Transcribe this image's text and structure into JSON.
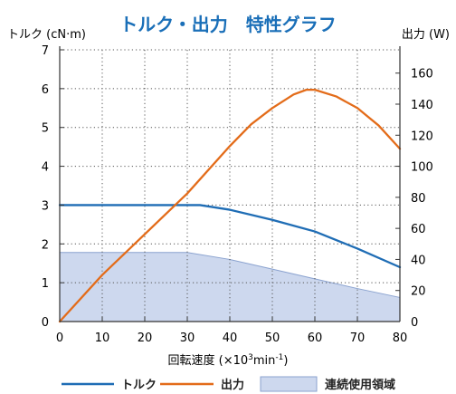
{
  "chart_data": {
    "type": "line",
    "title": "トルク・出力　特性グラフ",
    "title_color": "#1a6fb8",
    "y_left_label": "トルク (cN·m)",
    "y_right_label": "出力 (W)",
    "xlabel_parts": [
      "回転速度 (×10",
      "3",
      "min",
      "-1",
      ")"
    ],
    "xlim": [
      0,
      80
    ],
    "ylim_left": [
      0,
      7
    ],
    "ylim_right": [
      0,
      175
    ],
    "x_ticks": [
      0,
      10,
      20,
      30,
      40,
      50,
      60,
      70,
      80
    ],
    "y_left_ticks": [
      0,
      1,
      2,
      3,
      4,
      5,
      6,
      7
    ],
    "y_right_ticks": [
      0,
      20,
      40,
      60,
      80,
      100,
      120,
      140,
      160
    ],
    "grid": "dotted",
    "legend_position": "bottom",
    "series": [
      {
        "name": "トルク",
        "type": "line",
        "axis": "left",
        "color": "#1f6db5",
        "x": [
          0,
          10,
          20,
          30,
          33,
          40,
          50,
          60,
          70,
          80
        ],
        "y": [
          3.0,
          3.0,
          3.0,
          3.0,
          3.0,
          2.88,
          2.62,
          2.32,
          1.88,
          1.4
        ]
      },
      {
        "name": "出力",
        "type": "line",
        "axis": "left",
        "color": "#e36c1a",
        "x": [
          0,
          10,
          20,
          30,
          40,
          45,
          50,
          55,
          58,
          60,
          65,
          70,
          75,
          80
        ],
        "y": [
          0,
          1.2,
          2.25,
          3.3,
          4.52,
          5.08,
          5.5,
          5.85,
          5.97,
          5.97,
          5.8,
          5.5,
          5.05,
          4.45
        ]
      },
      {
        "name": "連続使用領域",
        "type": "area",
        "axis": "left",
        "color": "#cdd8ee",
        "edge_color": "#8aa2cf",
        "x": [
          0,
          30,
          40,
          50,
          60,
          70,
          80
        ],
        "y": [
          1.78,
          1.78,
          1.6,
          1.35,
          1.1,
          0.85,
          0.62
        ]
      }
    ]
  }
}
